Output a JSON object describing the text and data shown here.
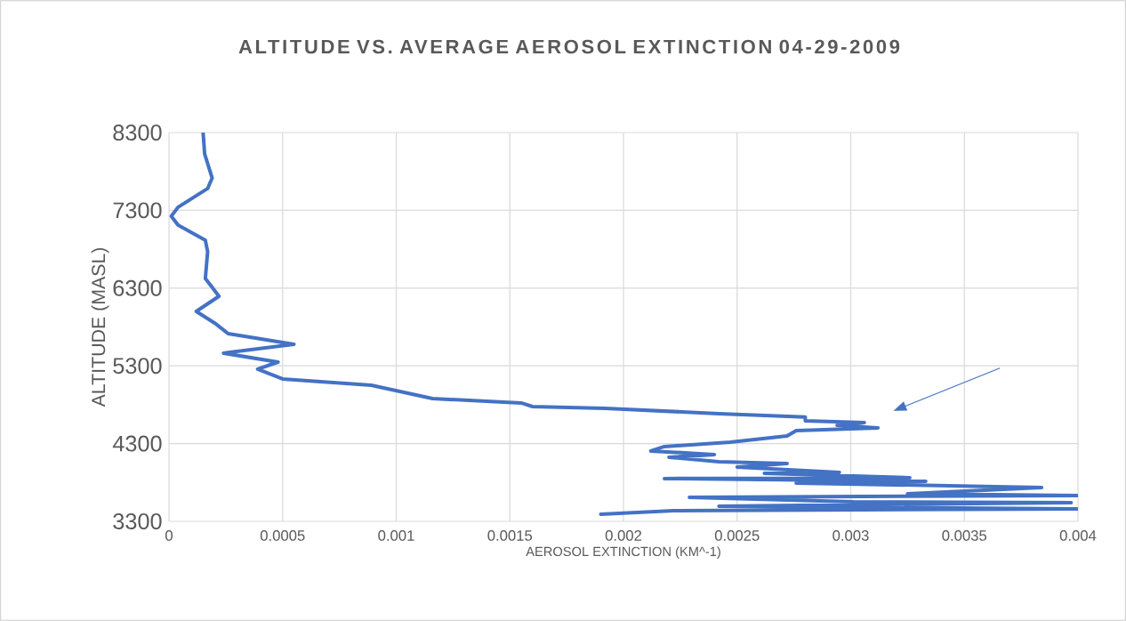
{
  "chart_data": {
    "type": "line",
    "title": "ALTITUDE VS. AVERAGE AEROSOL EXTINCTION 04-29-2009",
    "xlabel": "AEROSOL EXTINCTION (KM^-1)",
    "ylabel": "ALTITUDE (MASL)",
    "xlim": [
      0,
      0.004
    ],
    "ylim": [
      3300,
      8300
    ],
    "xticks": [
      0,
      0.0005,
      0.001,
      0.0015,
      0.002,
      0.0025,
      0.003,
      0.0035,
      0.004
    ],
    "yticks": [
      3300,
      4300,
      5300,
      6300,
      7300,
      8300
    ],
    "grid": true,
    "marker": "none",
    "line_style": "solid",
    "series": [
      {
        "color": "#4472c4",
        "x": [
          0.00015,
          0.000157,
          0.00019,
          0.00017,
          4e-05,
          1e-05,
          4e-05,
          0.00016,
          0.00017,
          0.00016,
          0.00022,
          0.00012,
          0.0002,
          0.00026,
          0.00055,
          0.00024,
          0.00048,
          0.00039,
          0.0005,
          0.00089,
          0.00116,
          0.00155,
          0.0016,
          0.00192,
          0.00242,
          0.0028,
          0.0028,
          0.00306,
          0.00294,
          0.00312,
          0.00276,
          0.00272,
          0.00247,
          0.00218,
          0.00212,
          0.0024,
          0.0022,
          0.00242,
          0.00272,
          0.0025,
          0.00295,
          0.00262,
          0.00326,
          0.00218,
          0.00333,
          0.00276,
          0.00384,
          0.00325,
          0.004,
          0.00229,
          0.00301,
          0.00397,
          0.00242,
          0.004,
          0.00222,
          0.0019
        ],
        "values": [
          8300,
          8025,
          7716,
          7580,
          7340,
          7225,
          7110,
          6915,
          6767,
          6424,
          6195,
          6000,
          5852,
          5714,
          5577,
          5463,
          5348,
          5257,
          5131,
          5050,
          4879,
          4822,
          4776,
          4753,
          4685,
          4640,
          4594,
          4571,
          4536,
          4502,
          4468,
          4399,
          4319,
          4262,
          4205,
          4159,
          4124,
          4067,
          4044,
          3998,
          3930,
          3918,
          3861,
          3850,
          3816,
          3793,
          3735,
          3655,
          3632,
          3609,
          3552,
          3541,
          3495,
          3460,
          3438,
          3392
        ]
      }
    ]
  }
}
